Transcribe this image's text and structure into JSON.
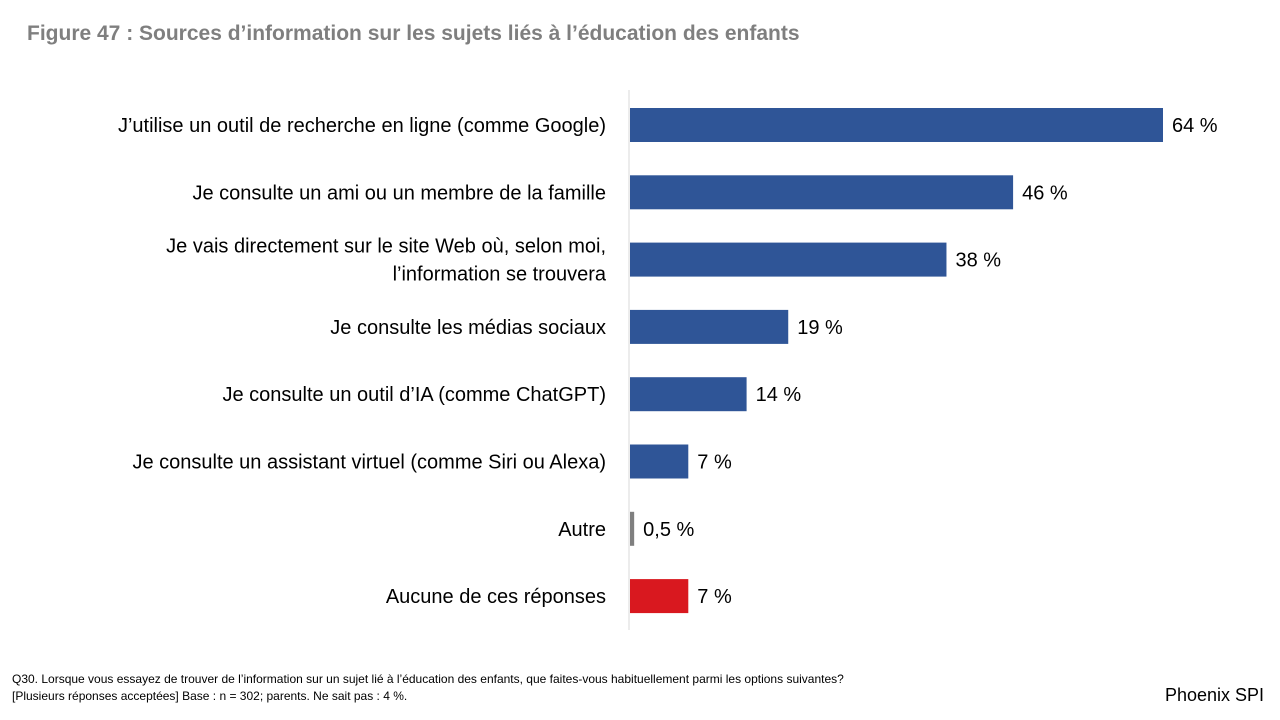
{
  "chart_data": {
    "type": "bar",
    "orientation": "horizontal",
    "title": "Figure 47 : Sources d’information sur les sujets liés à l’éducation des enfants",
    "categories": [
      [
        "J’utilise un outil de recherche en ligne (comme Google)"
      ],
      [
        "Je consulte un ami ou un membre de la famille"
      ],
      [
        "Je vais directement sur le site Web où, selon moi,",
        "l’information se trouvera"
      ],
      [
        "Je consulte les médias sociaux"
      ],
      [
        "Je consulte un outil d’IA (comme ChatGPT)"
      ],
      [
        "Je consulte un assistant virtuel (comme Siri ou Alexa)"
      ],
      [
        "Autre"
      ],
      [
        "Aucune de ces réponses"
      ]
    ],
    "values": [
      64,
      46,
      38,
      19,
      14,
      7,
      0.5,
      7
    ],
    "value_labels": [
      "64 %",
      "46 %",
      "38 %",
      "19 %",
      "14 %",
      "7 %",
      "0,5 %",
      "7 %"
    ],
    "bar_colors": [
      "#2f5597",
      "#2f5597",
      "#2f5597",
      "#2f5597",
      "#2f5597",
      "#2f5597",
      "#7f7f7f",
      "#d9181f"
    ],
    "xlim": [
      0,
      64
    ],
    "grid": false,
    "legend": "none"
  },
  "footnote": {
    "line1": "Q30. Lorsque vous essayez de trouver de l’information sur un sujet lié à l’éducation des enfants, que faites-vous habituellement parmi les options suivantes?",
    "line2": "[Plusieurs réponses acceptées] Base : n = 302; parents. Ne sait pas : 4 %."
  },
  "brand": "Phoenix SPI",
  "colors": {
    "title": "#7f7f7f",
    "axis": "#d9d9d9"
  }
}
